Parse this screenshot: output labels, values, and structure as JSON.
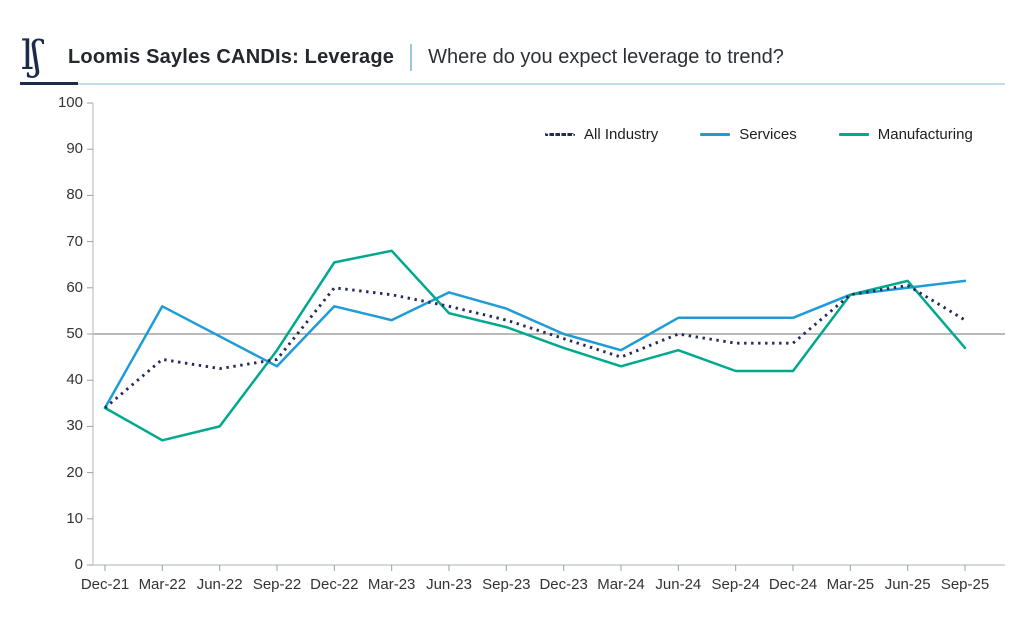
{
  "header": {
    "logo": "loomis-sayles-ls-monogram",
    "logo_glyphs": "lʃ",
    "title": "Loomis Sayles CANDIs: Leverage",
    "subtitle": "Where do you expect leverage to trend?"
  },
  "chart_data": {
    "type": "line",
    "title": "Loomis Sayles CANDIs: Leverage — Where do you expect leverage to trend?",
    "categories": [
      "Dec-21",
      "Mar-22",
      "Jun-22",
      "Sep-22",
      "Dec-22",
      "Mar-23",
      "Jun-23",
      "Sep-23",
      "Dec-23",
      "Mar-24",
      "Jun-24",
      "Sep-24",
      "Dec-24",
      "Mar-25",
      "Jun-25",
      "Sep-25"
    ],
    "series": [
      {
        "name": "All Industry",
        "style": "dotted",
        "color": "#252a5c",
        "values": [
          34,
          44.5,
          42.5,
          44.5,
          60,
          58.5,
          56,
          53,
          49,
          45,
          50,
          48,
          48,
          58.5,
          60.5,
          53
        ]
      },
      {
        "name": "Services",
        "style": "solid",
        "color": "#1e9cd7",
        "values": [
          34,
          56,
          49.5,
          43,
          56,
          53,
          59,
          55.5,
          50,
          46.5,
          53.5,
          53.5,
          53.5,
          58.5,
          60,
          61.5
        ]
      },
      {
        "name": "Manufacturing",
        "style": "solid",
        "color": "#00a88e",
        "values": [
          34,
          27,
          30,
          46.5,
          65.5,
          68,
          54.5,
          51.5,
          47,
          43,
          46.5,
          42,
          42,
          58.5,
          61.5,
          47
        ]
      }
    ],
    "xlabel": "",
    "ylabel": "",
    "ylim": [
      0,
      100
    ],
    "yticks": [
      0,
      10,
      20,
      30,
      40,
      50,
      60,
      70,
      80,
      90,
      100
    ],
    "reference_line": 50,
    "legend_position": "top-right",
    "grid": "horizontal reference line at 50 only"
  },
  "colors": {
    "all_industry": "#252a5c",
    "services": "#1e9cd7",
    "manufacturing": "#00a88e",
    "reference_line": "#8f8f8f",
    "axis": "#c7cbd0",
    "tick": "#9aa0a5",
    "header_rule_light": "#c3dcec",
    "header_rule_dark": "#1b2b4e",
    "logo_navy": "#1b2b4e"
  }
}
